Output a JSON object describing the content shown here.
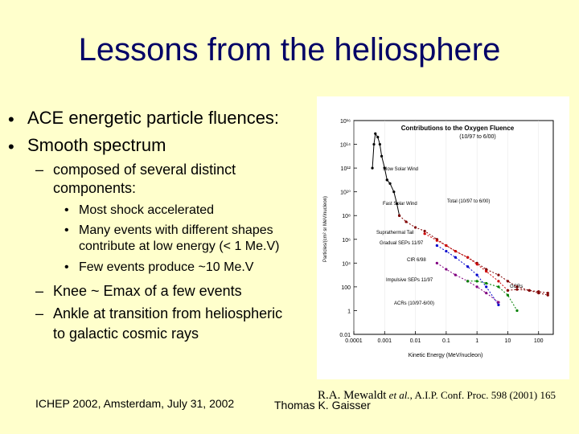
{
  "slide": {
    "title": "Lessons from the heliosphere",
    "bullets": [
      {
        "marker": "•",
        "text": "ACE energetic particle fluences:"
      },
      {
        "marker": "•",
        "text": "Smooth spectrum"
      }
    ],
    "sub": {
      "marker": "–",
      "line1": "composed of several distinct",
      "line2": "components:"
    },
    "subsub": [
      {
        "marker": "•",
        "text": "Most shock accelerated"
      },
      {
        "marker": "•",
        "text": "Many events with different shapes",
        "text2": "contribute at low energy (< 1 Me.V)"
      },
      {
        "marker": "•",
        "text": "Few events produce ~10 Me.V"
      }
    ],
    "sub2": [
      {
        "marker": "–",
        "text": "Knee ~ Emax of a few events"
      },
      {
        "marker": "–",
        "text": "Ankle at transition from heliospheric",
        "text2": "to galactic cosmic rays"
      }
    ],
    "footer_left": "ICHEP 2002, Amsterdam, July 31, 2002",
    "footer_center": "Thomas K. Gaisser",
    "citation": {
      "author": "R.A. Mewaldt",
      "etal": "et al.",
      "rest": ", A.I.P. Conf. Proc. 598 (2001) 165"
    }
  },
  "chart_data": {
    "type": "scatter",
    "title": "Contributions to the Oxygen Fluence",
    "subtitle": "(10/97 to 6/00)",
    "xlabel": "Kinetic Energy (MeV/nucleon)",
    "ylabel": "Particles/(cm² sr MeV/nucleon)",
    "x_scale": "log",
    "y_scale": "log",
    "xlim": [
      0.0001,
      300
    ],
    "ylim": [
      0.01,
      1e+16
    ],
    "x_ticks": [
      "0.0001",
      "0.001",
      "0.01",
      "0.1",
      "1",
      "10",
      "100"
    ],
    "y_ticks": [
      "10¹⁶",
      "10¹⁴",
      "10¹²",
      "10¹⁰",
      "10⁸",
      "10⁶",
      "10⁴",
      "100",
      "1",
      "0.01"
    ],
    "series": [
      {
        "name": "Slow Solar Wind",
        "color": "#000000",
        "x": [
          0.0004,
          0.00045,
          0.0005,
          0.0006,
          0.0007,
          0.0008,
          0.001,
          0.0012
        ],
        "y": [
          1000000000000.0,
          100000000000000.0,
          800000000000000.0,
          400000000000000.0,
          100000000000000.0,
          10000000000000.0,
          1000000000000.0,
          100000000000.0
        ]
      },
      {
        "name": "Fast Solar Wind",
        "color": "#000000",
        "x": [
          0.0012,
          0.0015,
          0.002,
          0.0025,
          0.003
        ],
        "y": [
          100000000000.0,
          50000000000.0,
          10000000000.0,
          1000000000.0,
          100000000.0
        ]
      },
      {
        "name": "Total (10/97 to 6/00)",
        "color": "#800000",
        "x": [
          0.003,
          0.005,
          0.01,
          0.02,
          0.05,
          0.1,
          0.2,
          0.5,
          1,
          2,
          5,
          10,
          20,
          50,
          100,
          200
        ],
        "y": [
          100000000.0,
          30000000.0,
          10000000.0,
          5000000.0,
          1000000.0,
          300000.0,
          100000.0,
          30000.0,
          10000.0,
          3000,
          1000,
          300,
          100,
          50,
          30,
          20
        ]
      },
      {
        "name": "Gradual SEPs 11/97",
        "color": "#cc0000",
        "x": [
          0.02,
          0.05,
          0.1,
          0.2,
          0.5,
          1,
          2,
          5,
          10
        ],
        "y": [
          3000000.0,
          800000.0,
          300000.0,
          100000.0,
          30000.0,
          8000,
          2000,
          300,
          50
        ]
      },
      {
        "name": "CIR 6/98",
        "color": "#0000cc",
        "x": [
          0.05,
          0.1,
          0.2,
          0.5,
          1,
          2,
          5
        ],
        "y": [
          300000.0,
          100000.0,
          30000.0,
          5000,
          1000,
          100,
          3
        ]
      },
      {
        "name": "Impulsive SEPs 11/97",
        "color": "#800080",
        "x": [
          0.05,
          0.1,
          0.2,
          0.5,
          1,
          2,
          5
        ],
        "y": [
          10000.0,
          3000,
          1000,
          300,
          100,
          30,
          5
        ]
      },
      {
        "name": "ACRs (10/97-6/00)",
        "color": "#008000",
        "x": [
          0.5,
          1,
          2,
          5,
          10,
          20
        ],
        "y": [
          300,
          300,
          200,
          100,
          20,
          1
        ]
      },
      {
        "name": "GCRs",
        "color": "#800000",
        "x": [
          10,
          20,
          50,
          100,
          200
        ],
        "y": [
          50,
          60,
          50,
          40,
          30
        ]
      }
    ],
    "annotations": [
      {
        "text": "Slow Solar Wind"
      },
      {
        "text": "Fast Solar Wind"
      },
      {
        "text": "Total (10/97 to 6/00)"
      },
      {
        "text": "Suprathermal Tail"
      },
      {
        "text": "Gradual SEPs 11/97"
      },
      {
        "text": "CIR 6/98"
      },
      {
        "text": "Impulsive SEPs 11/97"
      },
      {
        "text": "ACRs (10/97-6/00)"
      },
      {
        "text": "GCRs"
      }
    ]
  }
}
